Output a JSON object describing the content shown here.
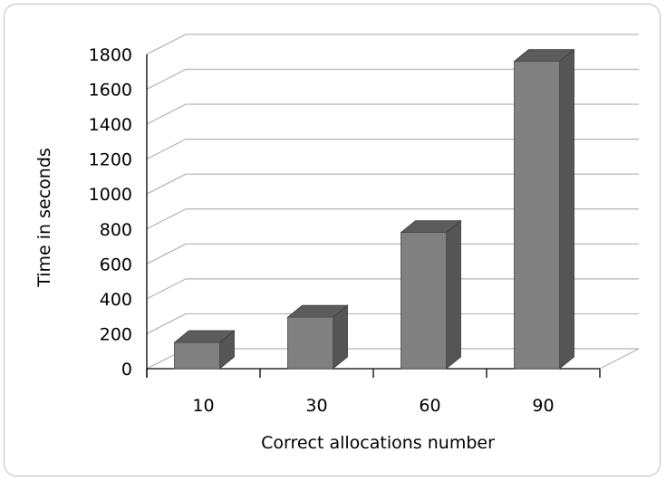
{
  "chart_data": {
    "type": "bar",
    "style": "3d-column",
    "categories": [
      "10",
      "30",
      "60",
      "90"
    ],
    "values": [
      150,
      295,
      780,
      1760
    ],
    "xlabel": "Correct allocations number",
    "ylabel": "Time in seconds",
    "ylim": [
      0,
      1800
    ],
    "yticks": [
      "0",
      "200",
      "400",
      "600",
      "800",
      "1000",
      "1200",
      "1400",
      "1600",
      "1800"
    ],
    "grid": true,
    "legend": "none",
    "colors": {
      "front": "#808080",
      "side": "#555555",
      "top": "#5c5c5c",
      "grid": "#b3b3b3"
    }
  }
}
